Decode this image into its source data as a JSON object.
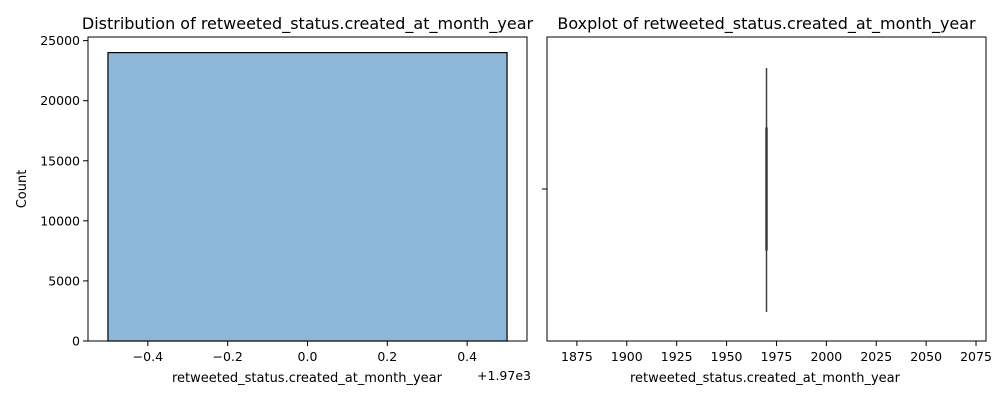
{
  "chart_data": [
    {
      "type": "bar",
      "title": "Distribution of retweeted_status.created_at_month_year",
      "xlabel": "retweeted_status.created_at_month_year",
      "ylabel": "Count",
      "x_offset_label": "+1.97e3",
      "xlim": [
        -0.55,
        0.55
      ],
      "ylim": [
        0,
        25300
      ],
      "xticks": [
        -0.4,
        -0.2,
        0.0,
        0.2,
        0.4
      ],
      "xtick_labels": [
        "−0.4",
        "−0.2",
        "0.0",
        "0.2",
        "0.4"
      ],
      "yticks": [
        0,
        5000,
        10000,
        15000,
        20000,
        25000
      ],
      "ytick_labels": [
        "0",
        "5000",
        "10000",
        "15000",
        "20000",
        "25000"
      ],
      "bars": [
        {
          "x_start": -0.5,
          "x_end": 0.5,
          "count": 24000
        }
      ],
      "bar_color": "#8DB8DA",
      "bar_edge_color": "#000000",
      "grid": false
    },
    {
      "type": "boxplot",
      "title": "Boxplot of retweeted_status.created_at_month_year",
      "xlabel": "retweeted_status.created_at_month_year",
      "xlim": [
        1860,
        2080
      ],
      "xticks": [
        1875,
        1900,
        1925,
        1950,
        1975,
        2000,
        2025,
        2050,
        2075
      ],
      "xtick_labels": [
        "1875",
        "1900",
        "1925",
        "1950",
        "1975",
        "2000",
        "2025",
        "2050",
        "2075"
      ],
      "box": {
        "min": 1970,
        "q1": 1970,
        "median": 1970,
        "q3": 1970,
        "max": 1970
      },
      "line_color": "#3F3F3F",
      "grid": false
    }
  ]
}
